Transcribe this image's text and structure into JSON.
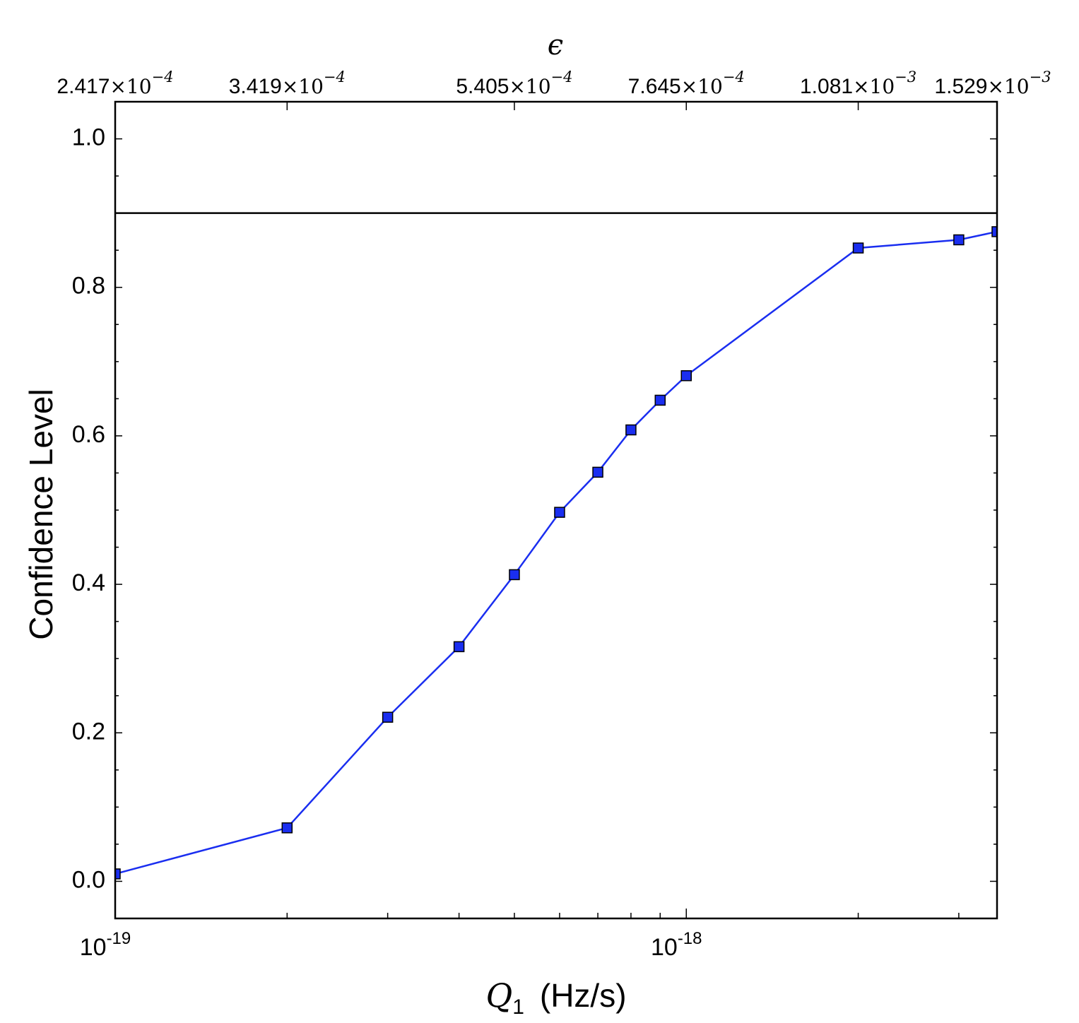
{
  "chart_data": {
    "type": "line",
    "xlabel_symbol": "Q",
    "xlabel_subscript": "1",
    "xlabel_units": "(Hz/s)",
    "ylabel": "Confidence Level",
    "top_axis_label": "ϵ",
    "x_scale": "log",
    "xlim": [
      1e-19,
      3.5e-18
    ],
    "ylim": [
      -0.05,
      1.05
    ],
    "x_tick_labels": [
      {
        "value": 1e-19,
        "base": "10",
        "exp": "-19"
      },
      {
        "value": 1e-18,
        "base": "10",
        "exp": "-18"
      }
    ],
    "y_ticks": [
      0.0,
      0.2,
      0.4,
      0.6,
      0.8,
      1.0
    ],
    "y_tick_labels": [
      "0.0",
      "0.2",
      "0.4",
      "0.6",
      "0.8",
      "1.0"
    ],
    "top_ticks": [
      {
        "q": 1e-19,
        "mantissa": "2.417",
        "exp": "−4"
      },
      {
        "q": 2e-19,
        "mantissa": "3.419",
        "exp": "−4"
      },
      {
        "q": 5e-19,
        "mantissa": "5.405",
        "exp": "−4"
      },
      {
        "q": 1e-18,
        "mantissa": "7.645",
        "exp": "−4"
      },
      {
        "q": 2e-18,
        "mantissa": "1.081",
        "exp": "−3"
      },
      {
        "q": 4e-18,
        "mantissa": "1.529",
        "exp": "−3"
      }
    ],
    "threshold": 0.9,
    "series": [
      {
        "color": "#1a2ef0",
        "x": [
          1e-19,
          2e-19,
          3e-19,
          4e-19,
          5e-19,
          6e-19,
          7e-19,
          8e-19,
          9e-19,
          1e-18,
          2e-18,
          3e-18,
          3.5e-18
        ],
        "y": [
          0.01,
          0.072,
          0.221,
          0.316,
          0.413,
          0.497,
          0.551,
          0.608,
          0.648,
          0.681,
          0.853,
          0.864,
          0.875
        ]
      }
    ]
  }
}
